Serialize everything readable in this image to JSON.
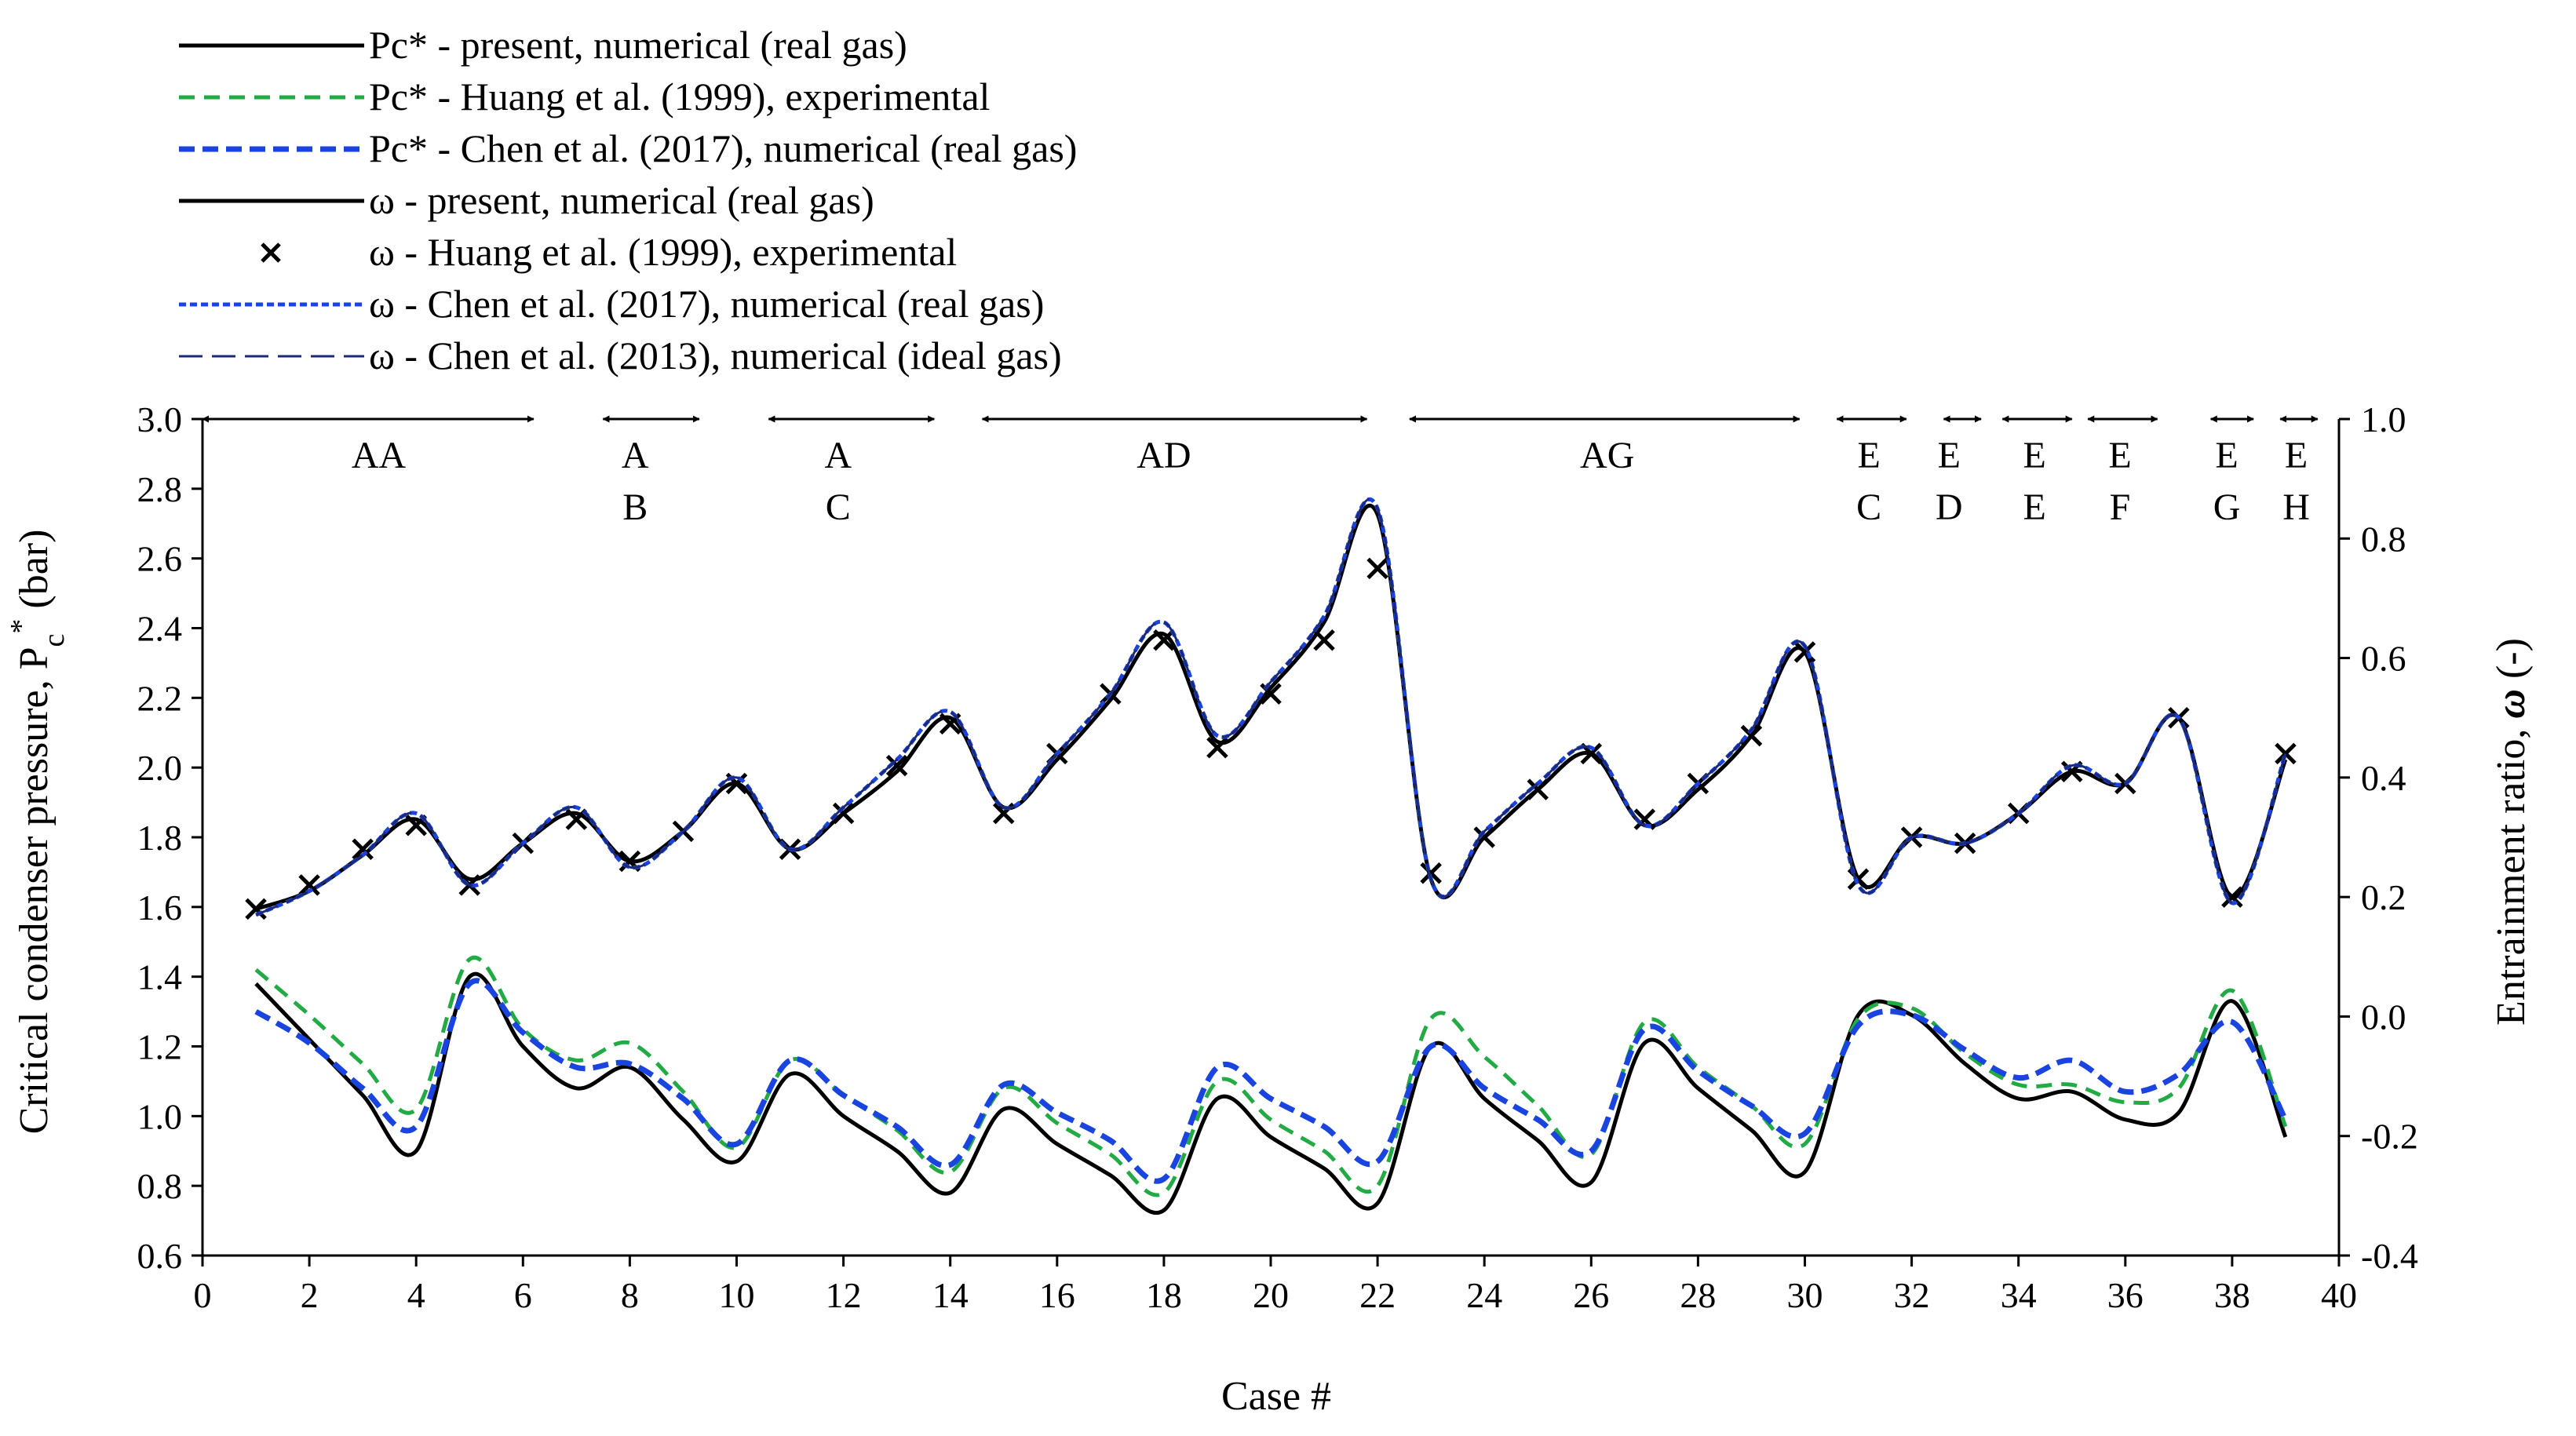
{
  "chart_data": {
    "type": "line",
    "xlabel": "Case #",
    "ylabel_left": "Critical condenser pressure, P",
    "ylabel_left_sub": "c",
    "ylabel_left_sup": "*",
    "ylabel_left_unit": " (bar)",
    "ylabel_right": "Entrainment ratio, ",
    "ylabel_right_symbol": "ω",
    "ylabel_right_unit": " (-)",
    "xlim": [
      0,
      40
    ],
    "ylim_left": [
      0.6,
      3.0
    ],
    "ylim_right": [
      -0.4,
      1.0
    ],
    "x_ticks": [
      0,
      2,
      4,
      6,
      8,
      10,
      12,
      14,
      16,
      18,
      20,
      22,
      24,
      26,
      28,
      30,
      32,
      34,
      36,
      38,
      40
    ],
    "y_left_ticks": [
      "0.6",
      "0.8",
      "1.0",
      "1.2",
      "1.4",
      "1.6",
      "1.8",
      "2.0",
      "2.2",
      "2.4",
      "2.6",
      "2.8",
      "3.0"
    ],
    "y_right_ticks": [
      "-0.4",
      "-0.2",
      "0.0",
      "0.2",
      "0.4",
      "0.6",
      "0.8",
      "1.0"
    ],
    "cases": [
      1,
      2,
      3,
      4,
      5,
      6,
      7,
      8,
      9,
      10,
      11,
      12,
      13,
      14,
      15,
      16,
      17,
      18,
      19,
      20,
      21,
      22,
      23,
      24,
      25,
      26,
      27,
      28,
      29,
      30,
      31,
      32,
      33,
      34,
      35,
      36,
      37,
      38,
      39
    ],
    "series": [
      {
        "name": "Pc* - present, numerical (real gas)",
        "axis": "left",
        "color": "#000000",
        "style": "solid",
        "values": [
          1.38,
          1.22,
          1.06,
          0.9,
          1.4,
          1.2,
          1.08,
          1.14,
          0.99,
          0.87,
          1.12,
          1.0,
          0.9,
          0.78,
          1.02,
          0.92,
          0.83,
          0.73,
          1.05,
          0.94,
          0.85,
          0.75,
          1.2,
          1.05,
          0.93,
          0.81,
          1.21,
          1.08,
          0.96,
          0.84,
          1.29,
          1.29,
          1.15,
          1.05,
          1.07,
          0.99,
          1.01,
          1.33,
          0.94
        ]
      },
      {
        "name": "Pc* - Huang et al. (1999), experimental",
        "axis": "left",
        "color": "#22aa44",
        "style": "dashed",
        "values": [
          1.42,
          1.29,
          1.15,
          1.02,
          1.45,
          1.25,
          1.16,
          1.21,
          1.07,
          0.91,
          1.16,
          1.06,
          0.96,
          0.84,
          1.08,
          0.98,
          0.89,
          0.78,
          1.1,
          0.99,
          0.9,
          0.8,
          1.28,
          1.17,
          1.03,
          0.89,
          1.27,
          1.14,
          1.03,
          0.92,
          1.28,
          1.31,
          1.18,
          1.09,
          1.09,
          1.04,
          1.08,
          1.36,
          0.97
        ]
      },
      {
        "name": "Pc* - Chen et al. (2017), numerical (real gas)",
        "axis": "left",
        "color": "#1a44e0",
        "style": "dashed-bold",
        "values": [
          1.3,
          1.21,
          1.08,
          0.97,
          1.38,
          1.24,
          1.14,
          1.15,
          1.05,
          0.92,
          1.16,
          1.06,
          0.97,
          0.86,
          1.09,
          1.01,
          0.93,
          0.82,
          1.14,
          1.05,
          0.97,
          0.87,
          1.2,
          1.08,
          0.99,
          0.9,
          1.25,
          1.13,
          1.03,
          0.95,
          1.26,
          1.29,
          1.19,
          1.11,
          1.16,
          1.07,
          1.12,
          1.27,
          0.99
        ]
      },
      {
        "name": "ω - present, numerical (real gas)",
        "axis": "right",
        "color": "#000000",
        "style": "solid",
        "values": [
          0.18,
          0.21,
          0.27,
          0.33,
          0.23,
          0.29,
          0.34,
          0.26,
          0.31,
          0.39,
          0.28,
          0.34,
          0.41,
          0.5,
          0.35,
          0.43,
          0.53,
          0.64,
          0.46,
          0.55,
          0.66,
          0.84,
          0.23,
          0.3,
          0.38,
          0.44,
          0.32,
          0.38,
          0.47,
          0.61,
          0.23,
          0.3,
          0.29,
          0.34,
          0.41,
          0.39,
          0.5,
          0.2,
          0.43
        ]
      },
      {
        "name": "ω - Huang et al. (1999), experimental",
        "axis": "right",
        "color": "#000000",
        "style": "x-marker",
        "values": [
          0.18,
          0.22,
          0.28,
          0.32,
          0.22,
          0.29,
          0.33,
          0.26,
          0.31,
          0.39,
          0.28,
          0.34,
          0.42,
          0.49,
          0.34,
          0.44,
          0.54,
          0.63,
          0.45,
          0.54,
          0.63,
          0.75,
          0.24,
          0.3,
          0.38,
          0.44,
          0.33,
          0.39,
          0.47,
          0.61,
          0.23,
          0.3,
          0.29,
          0.34,
          0.41,
          0.39,
          0.5,
          0.2,
          0.44
        ]
      },
      {
        "name": "ω - Chen et al. (2017), numerical (real gas)",
        "axis": "right",
        "color": "#1a44e0",
        "style": "dotted",
        "values": [
          0.17,
          0.21,
          0.27,
          0.34,
          0.22,
          0.29,
          0.35,
          0.25,
          0.31,
          0.4,
          0.28,
          0.35,
          0.43,
          0.51,
          0.35,
          0.44,
          0.54,
          0.66,
          0.47,
          0.56,
          0.67,
          0.85,
          0.23,
          0.31,
          0.39,
          0.45,
          0.32,
          0.39,
          0.48,
          0.62,
          0.22,
          0.3,
          0.29,
          0.34,
          0.42,
          0.39,
          0.5,
          0.19,
          0.44
        ]
      },
      {
        "name": "ω - Chen et al. (2013), numerical (ideal gas)",
        "axis": "right",
        "color": "#1a2a7a",
        "style": "long-dashed",
        "values": [
          0.17,
          0.21,
          0.27,
          0.34,
          0.22,
          0.29,
          0.35,
          0.25,
          0.31,
          0.4,
          0.28,
          0.35,
          0.43,
          0.51,
          0.35,
          0.44,
          0.54,
          0.66,
          0.47,
          0.56,
          0.67,
          0.85,
          0.23,
          0.31,
          0.39,
          0.45,
          0.32,
          0.39,
          0.48,
          0.62,
          0.22,
          0.3,
          0.29,
          0.34,
          0.42,
          0.39,
          0.5,
          0.19,
          0.44
        ]
      }
    ],
    "legend": [
      {
        "label": "Pc* - present, numerical (real gas)",
        "style": "solid",
        "color": "#000000"
      },
      {
        "label": "Pc* - Huang et al. (1999), experimental",
        "style": "dashed",
        "color": "#22aa44"
      },
      {
        "label": "Pc* - Chen et al. (2017), numerical (real gas)",
        "style": "dashed-bold",
        "color": "#1a44e0"
      },
      {
        "label": "ω - present, numerical (real gas)",
        "style": "solid",
        "color": "#000000"
      },
      {
        "label": "ω - Huang et al. (1999), experimental",
        "style": "x-marker",
        "color": "#000000"
      },
      {
        "label": "ω - Chen et al. (2017), numerical (real gas)",
        "style": "dotted",
        "color": "#1a44e0"
      },
      {
        "label": "ω - Chen et al. (2013), numerical (ideal gas)",
        "style": "long-dashed",
        "color": "#1a2a7a"
      }
    ],
    "legend_position": "top-left",
    "annotations": [
      {
        "lines": [
          "AA"
        ],
        "x_from": 0,
        "x_to": 6.2,
        "label_x": 3.3
      },
      {
        "lines": [
          "A",
          "B"
        ],
        "x_from": 7.5,
        "x_to": 9.3,
        "label_x": 8.1
      },
      {
        "lines": [
          "A",
          "C"
        ],
        "x_from": 10.6,
        "x_to": 13.7,
        "label_x": 11.9
      },
      {
        "lines": [
          "AD"
        ],
        "x_from": 14.6,
        "x_to": 21.8,
        "label_x": 18.0
      },
      {
        "lines": [
          "AG"
        ],
        "x_from": 22.6,
        "x_to": 29.9,
        "label_x": 26.3
      },
      {
        "lines": [
          "E",
          "C"
        ],
        "x_from": 30.6,
        "x_to": 31.9,
        "label_x": 31.2
      },
      {
        "lines": [
          "E",
          "D"
        ],
        "x_from": 32.6,
        "x_to": 33.3,
        "label_x": 32.7
      },
      {
        "lines": [
          "E",
          "E"
        ],
        "x_from": 33.7,
        "x_to": 35.0,
        "label_x": 34.3
      },
      {
        "lines": [
          "E",
          "F"
        ],
        "x_from": 35.3,
        "x_to": 36.6,
        "label_x": 35.9
      },
      {
        "lines": [
          "E",
          "G"
        ],
        "x_from": 37.6,
        "x_to": 38.4,
        "label_x": 37.9
      },
      {
        "lines": [
          "E",
          "H"
        ],
        "x_from": 38.9,
        "x_to": 39.6,
        "label_x": 39.2
      }
    ]
  }
}
